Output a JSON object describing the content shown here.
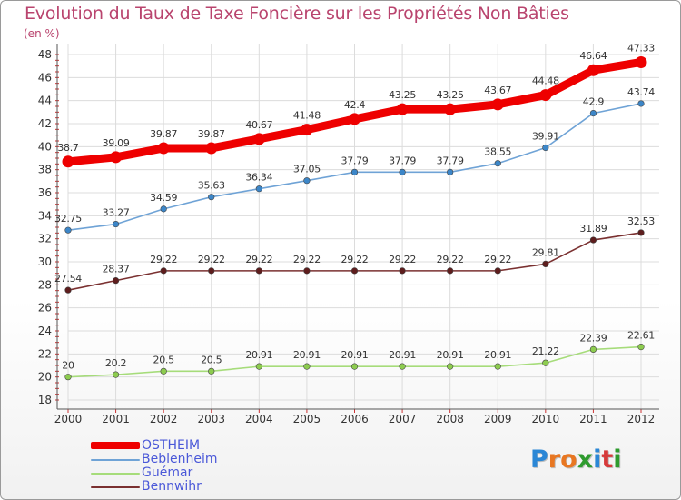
{
  "title": "Evolution du Taux de Taxe Foncière sur les Propriétés Non Bâties",
  "unit_label": "(en %)",
  "logo": {
    "text": "Proxiti",
    "letters": [
      "P",
      "r",
      "o",
      "x",
      "i",
      "t",
      "i"
    ],
    "colors": [
      "#2b87d6",
      "#e87722",
      "#e87722",
      "#2e9b2e",
      "#2b87d6",
      "#d63a3a",
      "#2e9b2e"
    ]
  },
  "chart_data": {
    "type": "line",
    "title": "Evolution du Taux de Taxe Foncière sur les Propriétés Non Bâties",
    "ylabel": "(en %)",
    "xlabel": "",
    "x": [
      "2000",
      "2001",
      "2002",
      "2003",
      "2004",
      "2005",
      "2006",
      "2007",
      "2008",
      "2009",
      "2010",
      "2011",
      "2012"
    ],
    "ylim": [
      18,
      48
    ],
    "yticks": [
      "18",
      "20",
      "22",
      "24",
      "26",
      "28",
      "30",
      "32",
      "34",
      "36",
      "38",
      "40",
      "42",
      "44",
      "46",
      "48"
    ],
    "grid": true,
    "legend_position": "bottom-left",
    "series": [
      {
        "name": "OSTHEIM",
        "color": "#ee0000",
        "emphasis": true,
        "values": [
          38.7,
          39.09,
          39.87,
          39.87,
          40.67,
          41.48,
          42.4,
          43.25,
          43.25,
          43.67,
          44.48,
          46.64,
          47.33
        ],
        "labels": [
          "38.7",
          "39.09",
          "39.87",
          "39.87",
          "40.67",
          "41.48",
          "42.4",
          "43.25",
          "43.25",
          "43.67",
          "44.48",
          "46.64",
          "47.33"
        ]
      },
      {
        "name": "Beblenheim",
        "color": "#6fa3d6",
        "point_color": "#3c86c8",
        "values": [
          32.75,
          33.27,
          34.59,
          35.63,
          36.34,
          37.05,
          37.79,
          37.79,
          37.79,
          38.55,
          39.91,
          42.9,
          43.74
        ],
        "labels": [
          "32.75",
          "33.27",
          "34.59",
          "35.63",
          "36.34",
          "37.05",
          "37.79",
          "37.79",
          "37.79",
          "38.55",
          "39.91",
          "42.9",
          "43.74"
        ]
      },
      {
        "name": "Guémar",
        "color": "#a6dc7a",
        "point_color": "#8dcc4f",
        "values": [
          20,
          20.2,
          20.5,
          20.5,
          20.91,
          20.91,
          20.91,
          20.91,
          20.91,
          20.91,
          21.22,
          22.39,
          22.61
        ],
        "labels": [
          "20",
          "20.2",
          "20.5",
          "20.5",
          "20.91",
          "20.91",
          "20.91",
          "20.91",
          "20.91",
          "20.91",
          "21.22",
          "22.39",
          "22.61"
        ]
      },
      {
        "name": "Bennwihr",
        "color": "#7a3030",
        "point_color": "#5e1d1d",
        "values": [
          27.54,
          28.37,
          29.22,
          29.22,
          29.22,
          29.22,
          29.22,
          29.22,
          29.22,
          29.22,
          29.81,
          31.89,
          32.53
        ],
        "labels": [
          "27.54",
          "28.37",
          "29.22",
          "29.22",
          "29.22",
          "29.22",
          "29.22",
          "29.22",
          "29.22",
          "29.22",
          "29.81",
          "31.89",
          "32.53"
        ]
      }
    ],
    "legend_order": [
      "OSTHEIM",
      "Beblenheim",
      "Guémar",
      "Bennwihr"
    ]
  }
}
